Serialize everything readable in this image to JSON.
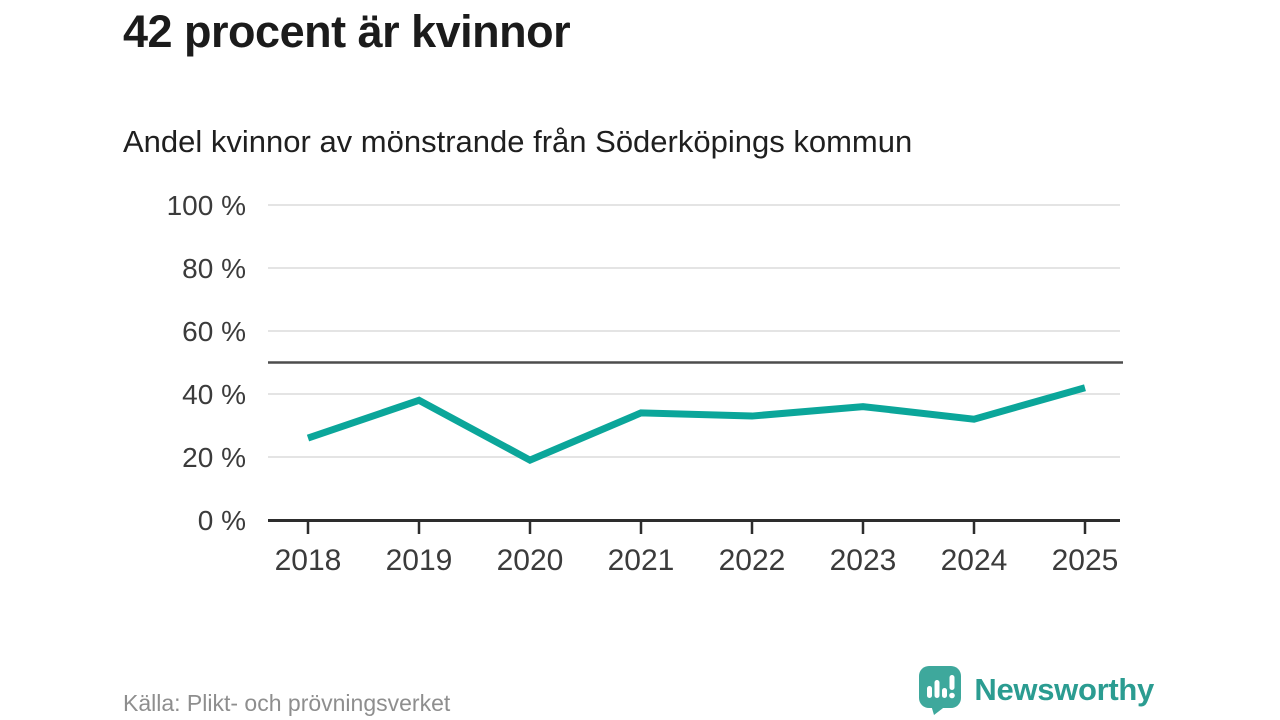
{
  "chart_data": {
    "type": "line",
    "title": "42 procent är kvinnor",
    "subtitle": "Andel kvinnor av mönstrande från Söderköpings kommun",
    "x": [
      2018,
      2019,
      2020,
      2021,
      2022,
      2023,
      2024,
      2025
    ],
    "series": [
      {
        "name": "Andel kvinnor",
        "values": [
          26,
          38,
          19,
          34,
          33,
          36,
          32,
          42
        ]
      }
    ],
    "unit": "%",
    "ylim": [
      0,
      100
    ],
    "y_ticks": [
      0,
      20,
      40,
      60,
      80,
      100
    ],
    "y_tick_suffix": " %",
    "reference_line": 50,
    "grid": "horizontal",
    "legend": "none",
    "line_color": "#0ba69a",
    "reference_line_color": "#4d4d4d",
    "grid_color": "#e4e4e4",
    "axis_color": "#2d2d2d",
    "tick_label_color": "#3b3b3b"
  },
  "footer": {
    "source": "Källa: Plikt- och prövningsverket",
    "brand": "Newsworthy"
  },
  "colors": {
    "accent": "#0ba69a",
    "brand_icon": "#3ea89c",
    "brand_text": "#2b9c91"
  }
}
